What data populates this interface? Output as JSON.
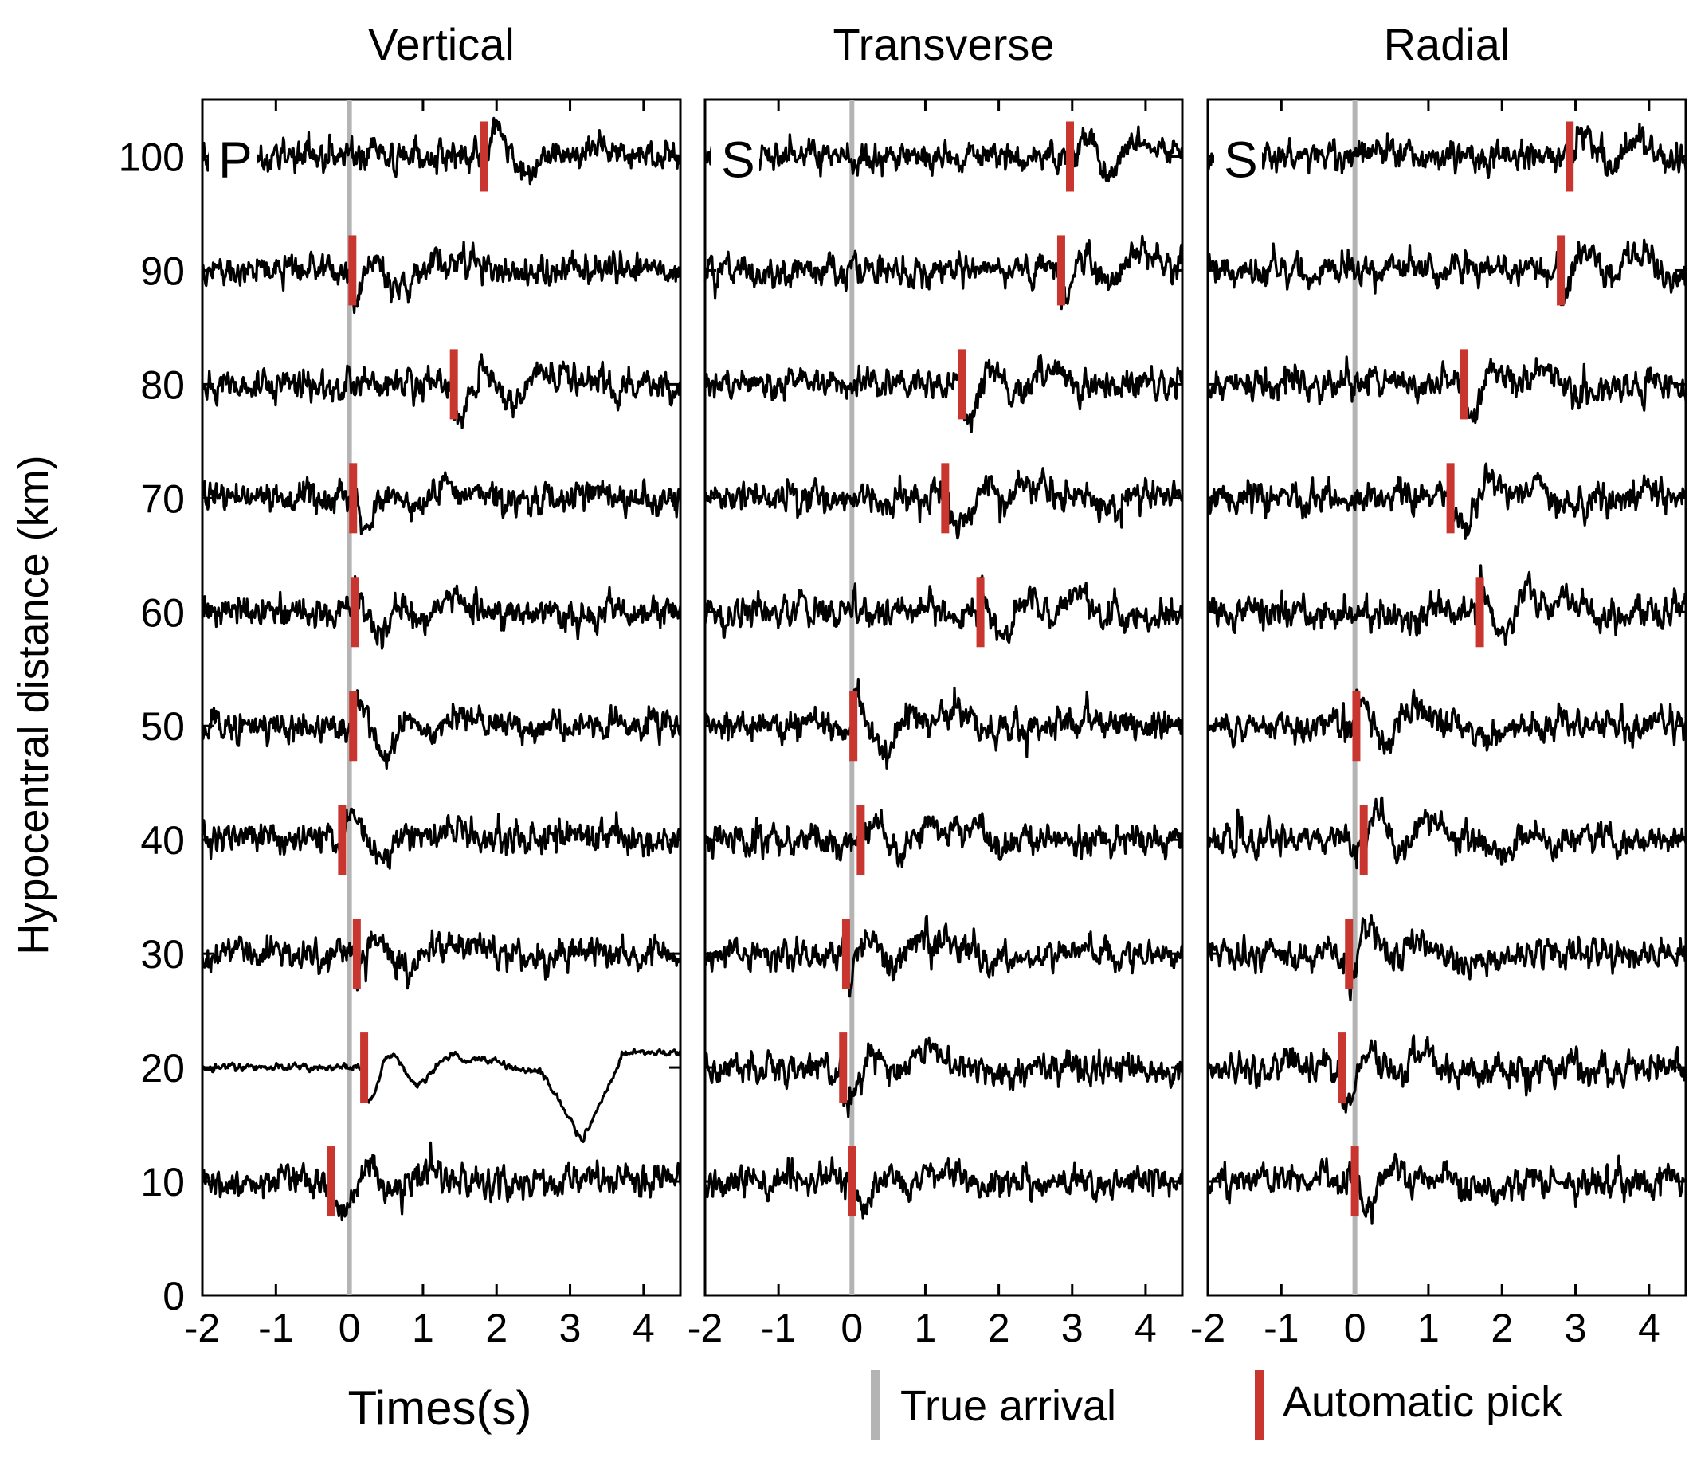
{
  "chart_data": {
    "type": "line",
    "ylabel": "Hypocentral distance (km)",
    "xlabel": "Times(s)",
    "ylim": [
      0,
      105
    ],
    "xlim": [
      -2,
      4.5
    ],
    "yticks": [
      0,
      10,
      20,
      30,
      40,
      50,
      60,
      70,
      80,
      90,
      100
    ],
    "xticks": [
      -2,
      -1,
      0,
      1,
      2,
      3,
      4
    ],
    "distances": [
      10,
      20,
      30,
      40,
      50,
      60,
      70,
      80,
      90,
      100
    ],
    "true_arrival_time": 0,
    "legend": {
      "true_arrival": {
        "label": "True arrival",
        "color": "#b4b4b4"
      },
      "automatic_pick": {
        "label": "Automatic pick",
        "color": "#c8362f"
      }
    },
    "panels": [
      {
        "title": "Vertical",
        "phase": "P",
        "picks": [
          {
            "distance": 10,
            "time": -0.25
          },
          {
            "distance": 20,
            "time": 0.2
          },
          {
            "distance": 30,
            "time": 0.1
          },
          {
            "distance": 40,
            "time": -0.1
          },
          {
            "distance": 50,
            "time": 0.05
          },
          {
            "distance": 60,
            "time": 0.07
          },
          {
            "distance": 70,
            "time": 0.05
          },
          {
            "distance": 80,
            "time": 1.42
          },
          {
            "distance": 90,
            "time": 0.04
          },
          {
            "distance": 100,
            "time": 1.83
          }
        ]
      },
      {
        "title": "Transverse",
        "phase": "S",
        "picks": [
          {
            "distance": 10,
            "time": 0.0
          },
          {
            "distance": 20,
            "time": -0.12
          },
          {
            "distance": 30,
            "time": -0.08
          },
          {
            "distance": 40,
            "time": 0.12
          },
          {
            "distance": 50,
            "time": 0.02
          },
          {
            "distance": 60,
            "time": 1.75
          },
          {
            "distance": 70,
            "time": 1.27
          },
          {
            "distance": 80,
            "time": 1.5
          },
          {
            "distance": 90,
            "time": 2.85
          },
          {
            "distance": 100,
            "time": 2.97
          }
        ]
      },
      {
        "title": "Radial",
        "phase": "S",
        "picks": [
          {
            "distance": 10,
            "time": 0.0
          },
          {
            "distance": 20,
            "time": -0.18
          },
          {
            "distance": 30,
            "time": -0.08
          },
          {
            "distance": 40,
            "time": 0.12
          },
          {
            "distance": 50,
            "time": 0.02
          },
          {
            "distance": 60,
            "time": 1.7
          },
          {
            "distance": 70,
            "time": 1.3
          },
          {
            "distance": 80,
            "time": 1.48
          },
          {
            "distance": 90,
            "time": 2.8
          },
          {
            "distance": 100,
            "time": 2.92
          }
        ]
      }
    ]
  }
}
